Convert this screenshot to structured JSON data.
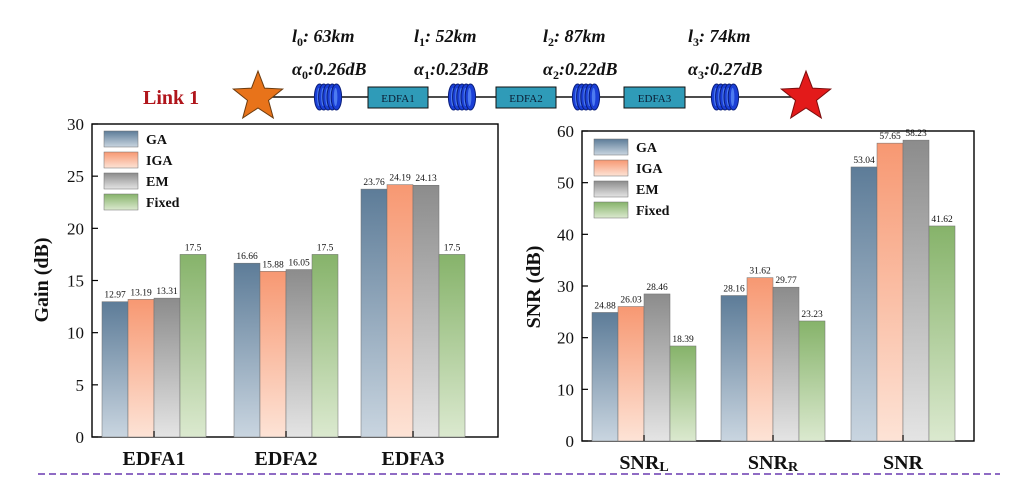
{
  "link": {
    "label": "Link 1",
    "spans": [
      {
        "length_var": "l",
        "sub": "0",
        "length": ": 63km",
        "att_var": "α",
        "att": ":0.26dB"
      },
      {
        "length_var": "l",
        "sub": "1",
        "length": ": 52km",
        "att_var": "α",
        "att": ":0.23dB"
      },
      {
        "length_var": "l",
        "sub": "2",
        "length": ": 87km",
        "att_var": "α",
        "att": ":0.22dB"
      },
      {
        "length_var": "l",
        "sub": "3",
        "length": ": 74km",
        "att_var": "α",
        "att": ":0.27dB"
      }
    ],
    "amplifiers": [
      "EDFA1",
      "EDFA2",
      "EDFA3"
    ],
    "colors": {
      "start_star": "#e8731a",
      "end_star": "#e31a1a",
      "coil": "#1a3fd6",
      "amplifier": "#2f9bb8",
      "label": "#b0151b"
    }
  },
  "chart_data": [
    {
      "type": "bar",
      "ylabel": "Gain (dB)",
      "ylim": [
        0,
        30
      ],
      "yticks": [
        0,
        5,
        10,
        15,
        20,
        25,
        30
      ],
      "categories": [
        "EDFA1",
        "EDFA2",
        "EDFA3"
      ],
      "legend_position": "top-left",
      "series": [
        {
          "name": "GA",
          "values": [
            12.97,
            16.66,
            23.76
          ],
          "labels": [
            "12.97",
            "16.66",
            "23.76"
          ]
        },
        {
          "name": "IGA",
          "values": [
            13.19,
            15.88,
            24.19
          ],
          "labels": [
            "13.19",
            "15.88",
            "24.19"
          ]
        },
        {
          "name": "EM",
          "values": [
            13.31,
            16.05,
            24.13
          ],
          "labels": [
            "13.31",
            "16.05",
            "24.13"
          ]
        },
        {
          "name": "Fixed",
          "values": [
            17.5,
            17.5,
            17.5
          ],
          "labels": [
            "17.5",
            "17.5",
            "17.5"
          ]
        }
      ]
    },
    {
      "type": "bar",
      "ylabel": "SNR (dB)",
      "ylim": [
        0,
        60
      ],
      "yticks": [
        0,
        10,
        20,
        30,
        40,
        50,
        60
      ],
      "categories": [
        {
          "main": "SNR",
          "sub": "L"
        },
        {
          "main": "SNR",
          "sub": "R"
        },
        {
          "main": "SNR",
          "sub": ""
        }
      ],
      "legend_position": "top-left",
      "series": [
        {
          "name": "GA",
          "values": [
            24.88,
            28.16,
            53.04
          ],
          "labels": [
            "24.88",
            "28.16",
            "53.04"
          ]
        },
        {
          "name": "IGA",
          "values": [
            26.03,
            31.62,
            57.65
          ],
          "labels": [
            "26.03",
            "31.62",
            "57.65"
          ]
        },
        {
          "name": "EM",
          "values": [
            28.46,
            29.77,
            58.23
          ],
          "labels": [
            "28.46",
            "29.77",
            "58.23"
          ]
        },
        {
          "name": "Fixed",
          "values": [
            18.39,
            23.23,
            41.62
          ],
          "labels": [
            "18.39",
            "23.23",
            "41.62"
          ]
        }
      ]
    }
  ],
  "series_colors": [
    {
      "top": "#5d7c98",
      "bottom": "#c9d5e0"
    },
    {
      "top": "#f79872",
      "bottom": "#fde3d6"
    },
    {
      "top": "#8c8c8c",
      "bottom": "#e4e4e4"
    },
    {
      "top": "#86b36a",
      "bottom": "#dbe9cf"
    }
  ],
  "divider_color": "#8f6bc4"
}
